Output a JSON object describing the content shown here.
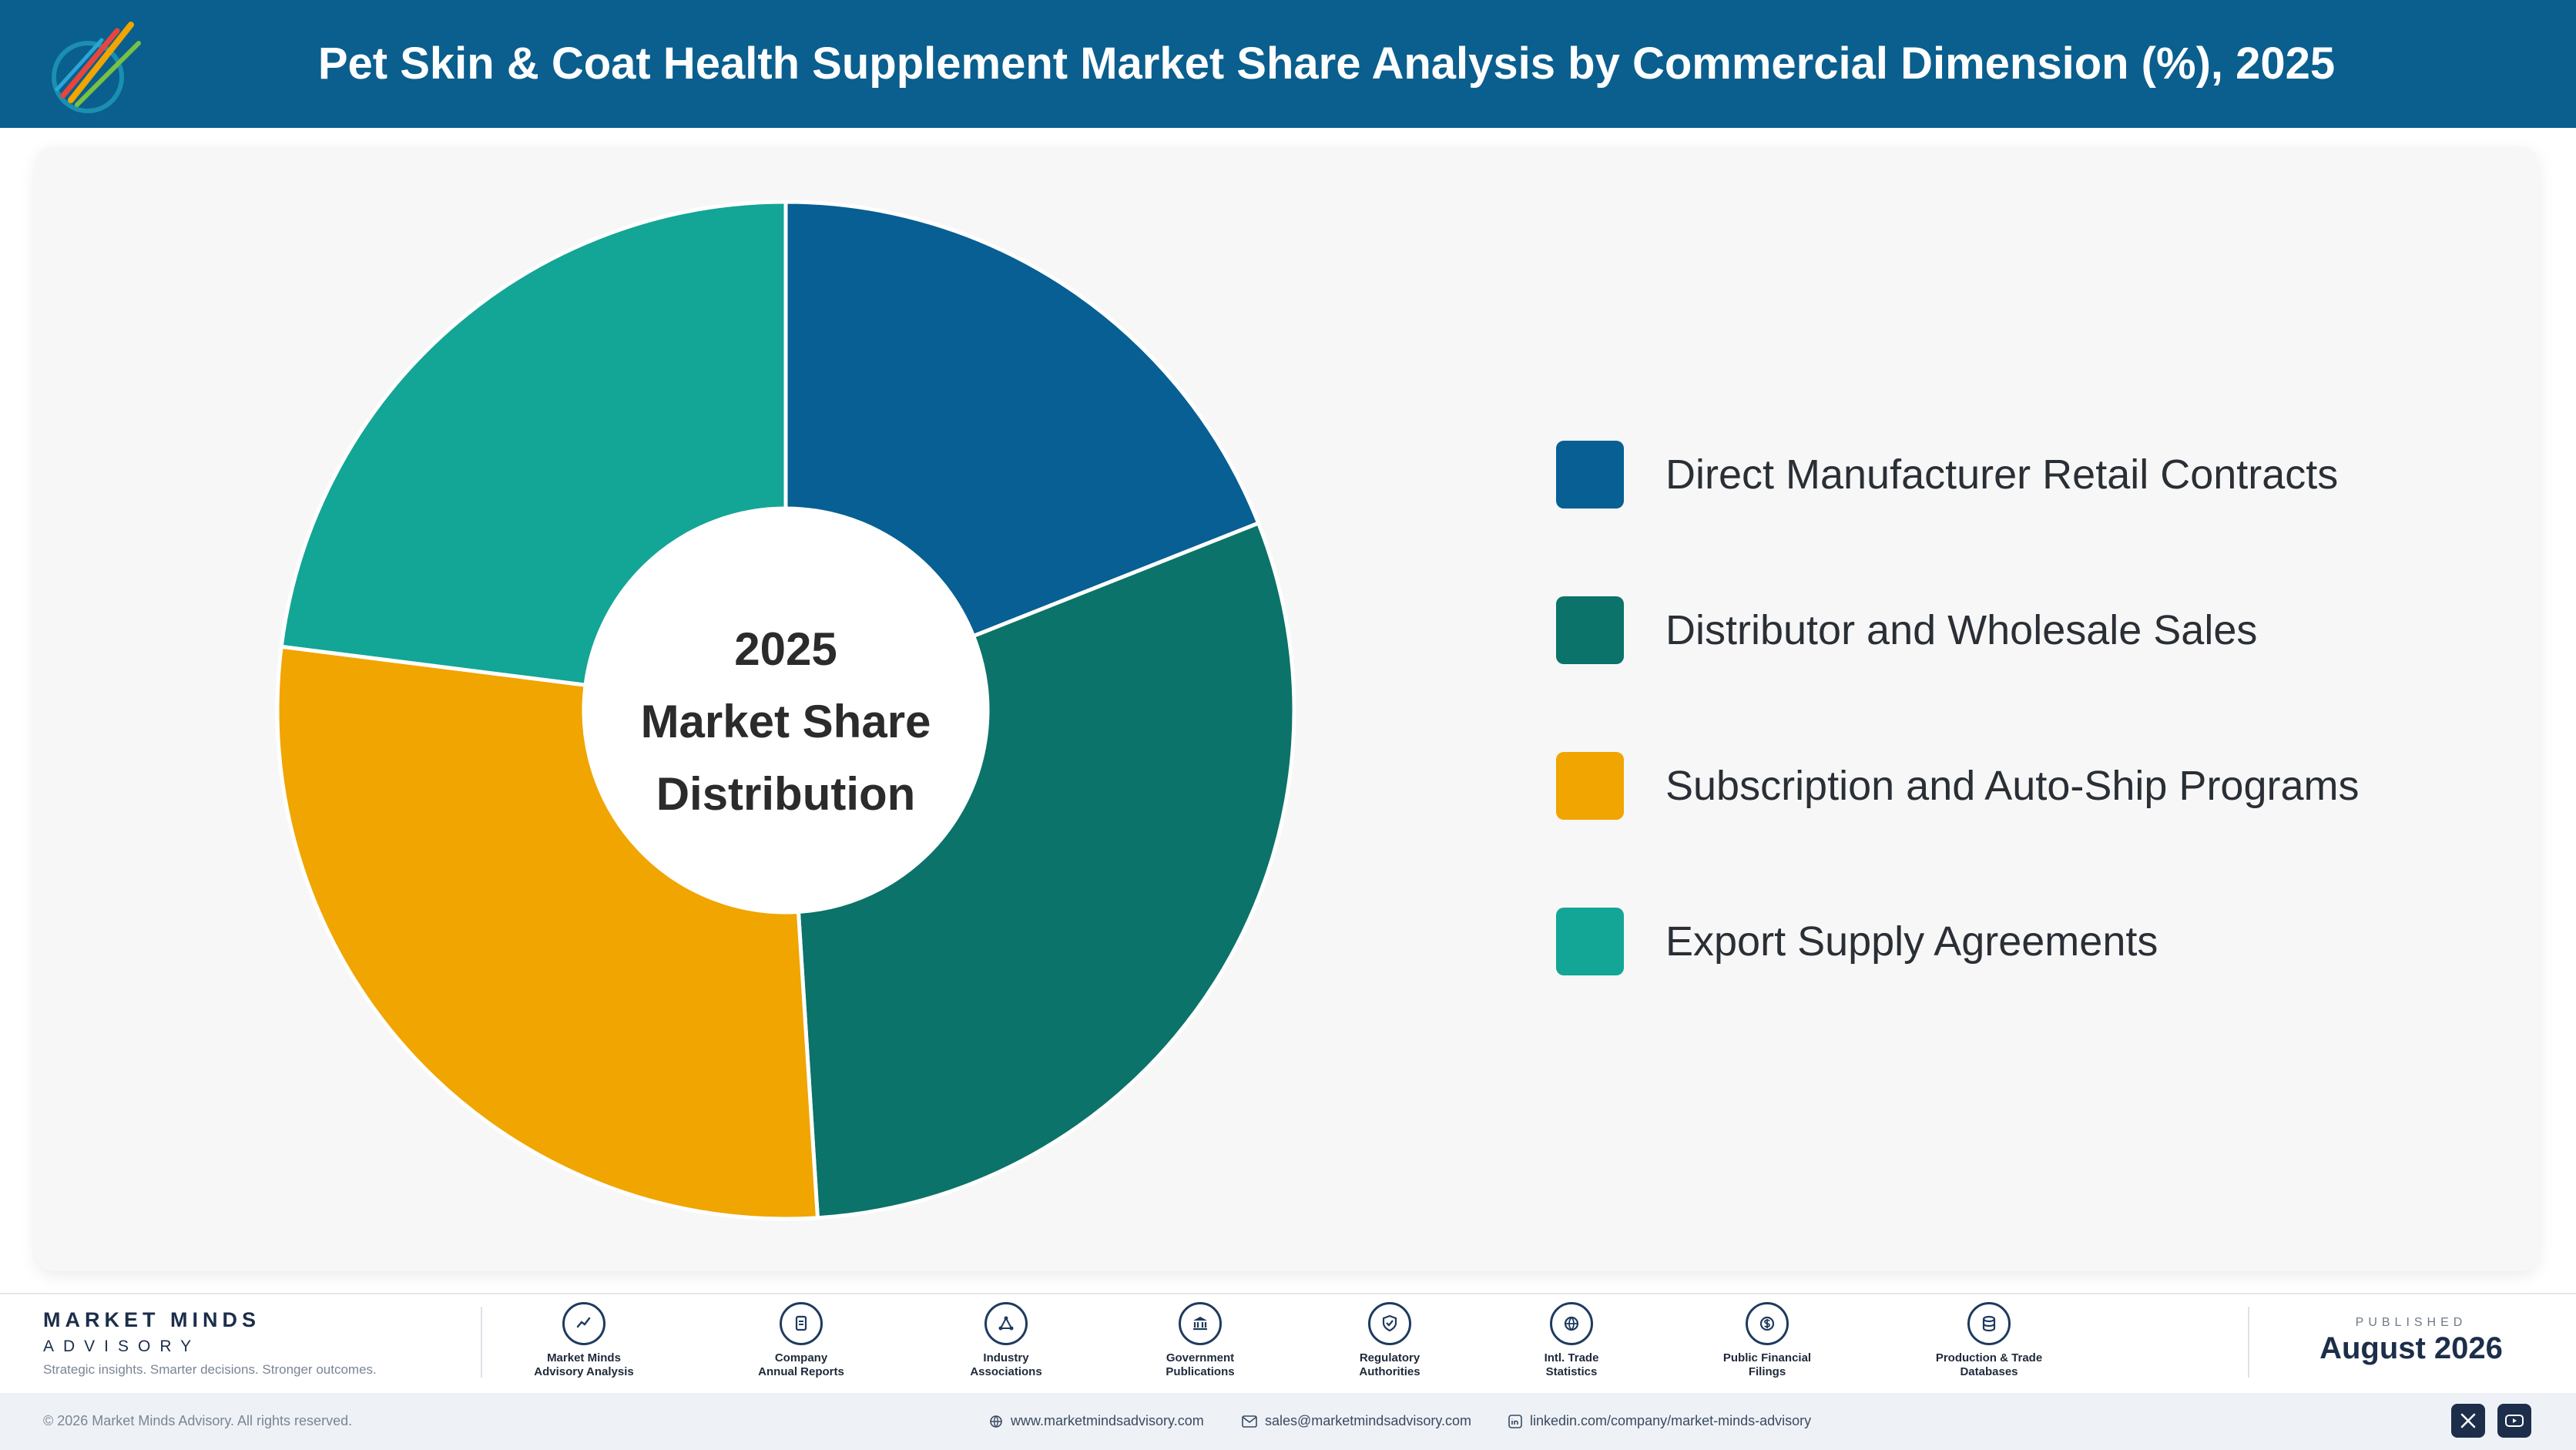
{
  "header": {
    "title": "Pet Skin & Coat Health Supplement Market Share Analysis by Commercial Dimension (%), 2025"
  },
  "chart_data": {
    "type": "pie",
    "variant": "donut",
    "categories": [
      "Direct Manufacturer Retail Contracts",
      "Distributor and Wholesale Sales",
      "Subscription and Auto-Ship Programs",
      "Export Supply Agreements"
    ],
    "values": [
      19,
      30,
      28,
      23
    ],
    "colors": [
      "#075f94",
      "#0b7369",
      "#f0a500",
      "#13a595"
    ],
    "center_label": [
      "2025",
      "Market Share",
      "Distribution"
    ],
    "legend_position": "right"
  },
  "footer": {
    "brand_name": "MARKET MINDS",
    "brand_sub": "ADVISORY",
    "tagline": "Strategic insights. Smarter decisions. Stronger outcomes.",
    "sources": [
      {
        "icon": "chart-line-icon",
        "label": "Market Minds\nAdvisory Analysis"
      },
      {
        "icon": "document-icon",
        "label": "Company\nAnnual Reports"
      },
      {
        "icon": "network-icon",
        "label": "Industry\nAssociations"
      },
      {
        "icon": "government-building-icon",
        "label": "Government\nPublications"
      },
      {
        "icon": "shield-check-icon",
        "label": "Regulatory\nAuthorities"
      },
      {
        "icon": "globe-icon",
        "label": "Intl. Trade\nStatistics"
      },
      {
        "icon": "dollar-icon",
        "label": "Public Financial\nFilings"
      },
      {
        "icon": "database-icon",
        "label": "Production & Trade\nDatabases"
      }
    ],
    "published_label": "PUBLISHED",
    "published_date": "August 2026",
    "copyright": "© 2026 Market Minds Advisory. All rights reserved.",
    "website": "www.marketmindsadvisory.com",
    "email": "sales@marketmindsadvisory.com",
    "linkedin": "linkedin.com/company/market-minds-advisory",
    "social_icons": [
      "x-icon",
      "youtube-icon"
    ]
  }
}
